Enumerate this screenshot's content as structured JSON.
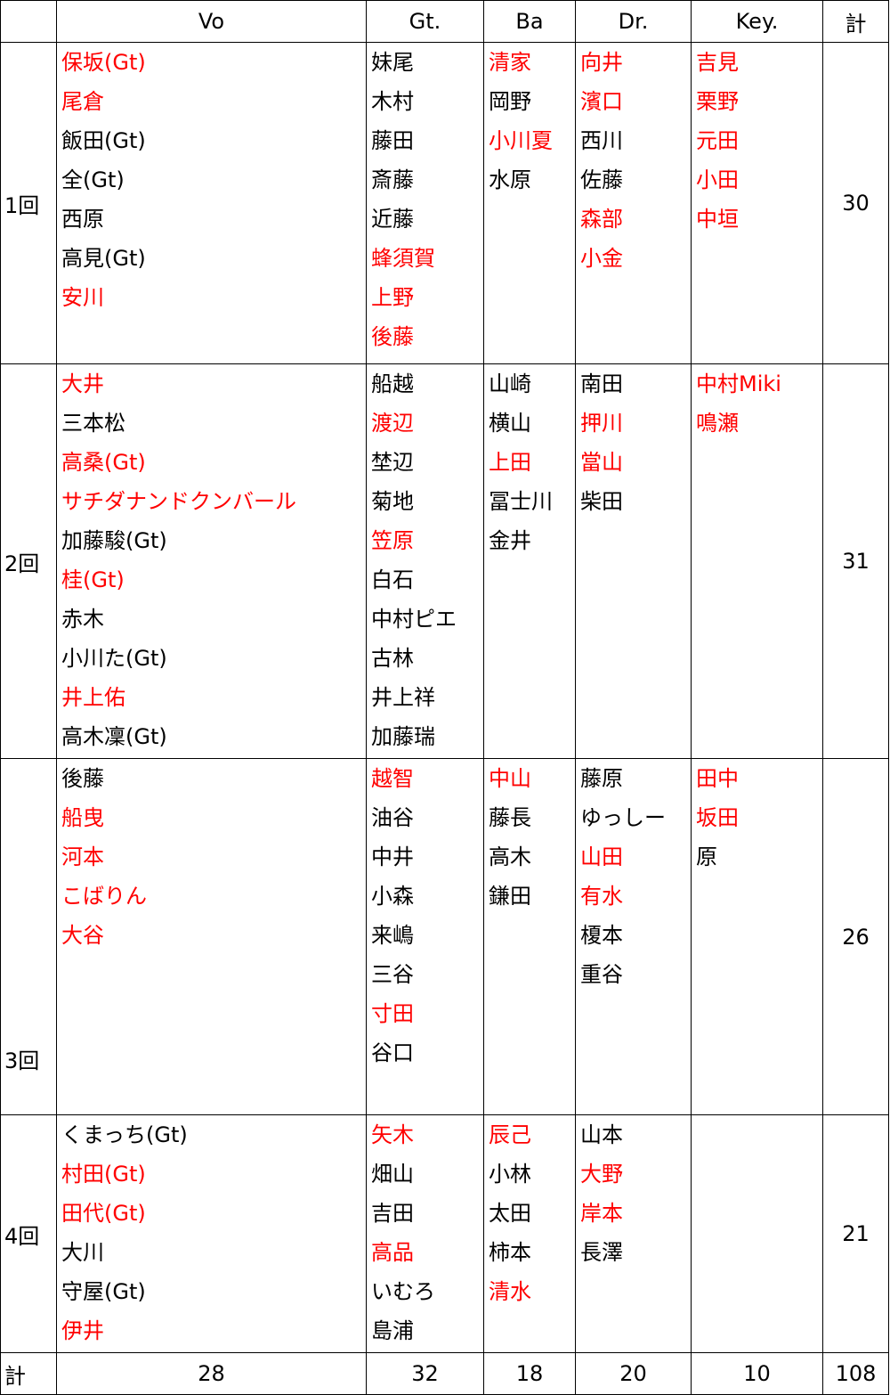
{
  "colors": {
    "highlight": "#ff0000",
    "text": "#000000"
  },
  "header": [
    "",
    "Vo",
    "Gt.",
    "Ba",
    "Dr.",
    "Key.",
    "計"
  ],
  "rows": [
    {
      "label": "1回",
      "total": "30",
      "cells": [
        [
          {
            "t": "保坂(Gt)",
            "red": true
          },
          {
            "t": "尾倉",
            "red": true
          },
          {
            "t": "飯田(Gt)"
          },
          {
            "t": "全(Gt)"
          },
          {
            "t": "西原"
          },
          {
            "t": "高見(Gt)"
          },
          {
            "t": "安川",
            "red": true
          }
        ],
        [
          {
            "t": "妹尾"
          },
          {
            "t": "木村"
          },
          {
            "t": "藤田"
          },
          {
            "t": "斎藤"
          },
          {
            "t": "近藤"
          },
          {
            "t": "蜂須賀",
            "red": true
          },
          {
            "t": "上野",
            "red": true
          },
          {
            "t": "後藤",
            "red": true
          }
        ],
        [
          {
            "t": "清家",
            "red": true
          },
          {
            "t": "岡野"
          },
          {
            "t": "小川夏",
            "red": true
          },
          {
            "t": "水原"
          }
        ],
        [
          {
            "t": "向井",
            "red": true
          },
          {
            "t": "濱口",
            "red": true
          },
          {
            "t": "西川"
          },
          {
            "t": "佐藤"
          },
          {
            "t": "森部",
            "red": true
          },
          {
            "t": "小金",
            "red": true
          }
        ],
        [
          {
            "t": "吉見",
            "red": true
          },
          {
            "t": "栗野",
            "red": true
          },
          {
            "t": "元田",
            "red": true
          },
          {
            "t": "小田",
            "red": true
          },
          {
            "t": "中垣",
            "red": true
          }
        ]
      ]
    },
    {
      "label": "2回",
      "total": "31",
      "cells": [
        [
          {
            "t": "大井",
            "red": true
          },
          {
            "t": "三本松"
          },
          {
            "t": "高桑(Gt)",
            "red": true
          },
          {
            "t": "サチダナンドクンバール",
            "red": true
          },
          {
            "t": "加藤駿(Gt)"
          },
          {
            "t": "桂(Gt)",
            "red": true
          },
          {
            "t": "赤木"
          },
          {
            "t": "小川た(Gt)"
          },
          {
            "t": "井上佑",
            "red": true
          },
          {
            "t": "高木凜(Gt)"
          }
        ],
        [
          {
            "t": "船越"
          },
          {
            "t": "渡辺",
            "red": true
          },
          {
            "t": "埜辺"
          },
          {
            "t": "菊地"
          },
          {
            "t": "笠原",
            "red": true
          },
          {
            "t": "白石"
          },
          {
            "t": "中村ピエ"
          },
          {
            "t": "古林"
          },
          {
            "t": "井上祥"
          },
          {
            "t": "加藤瑞"
          }
        ],
        [
          {
            "t": "山崎"
          },
          {
            "t": "横山"
          },
          {
            "t": "上田",
            "red": true
          },
          {
            "t": "冨士川"
          },
          {
            "t": "金井"
          }
        ],
        [
          {
            "t": "南田"
          },
          {
            "t": "押川",
            "red": true
          },
          {
            "t": "當山",
            "red": true
          },
          {
            "t": "柴田"
          }
        ],
        [
          {
            "t": "中村Miki",
            "red": true
          },
          {
            "t": "鳴瀬",
            "red": true
          }
        ]
      ]
    },
    {
      "label": "3回",
      "total": "26",
      "cells": [
        [
          {
            "t": "後藤"
          },
          {
            "t": "船曳",
            "red": true
          },
          {
            "t": "河本",
            "red": true
          },
          {
            "t": "こばりん",
            "red": true
          },
          {
            "t": "大谷",
            "red": true
          }
        ],
        [
          {
            "t": "越智",
            "red": true
          },
          {
            "t": "油谷"
          },
          {
            "t": "中井"
          },
          {
            "t": "小森"
          },
          {
            "t": "来嶋"
          },
          {
            "t": "三谷"
          },
          {
            "t": "寸田",
            "red": true
          },
          {
            "t": "谷口"
          }
        ],
        [
          {
            "t": "中山",
            "red": true
          },
          {
            "t": "藤長"
          },
          {
            "t": "高木"
          },
          {
            "t": "鎌田"
          }
        ],
        [
          {
            "t": "藤原"
          },
          {
            "t": "ゆっしー"
          },
          {
            "t": "山田",
            "red": true
          },
          {
            "t": "有水",
            "red": true
          },
          {
            "t": "榎本"
          },
          {
            "t": "重谷"
          }
        ],
        [
          {
            "t": "田中",
            "red": true
          },
          {
            "t": "坂田",
            "red": true
          },
          {
            "t": "原"
          }
        ]
      ]
    },
    {
      "label": "4回",
      "total": "21",
      "cells": [
        [
          {
            "t": "くまっち(Gt)"
          },
          {
            "t": "村田(Gt)",
            "red": true
          },
          {
            "t": "田代(Gt)",
            "red": true
          },
          {
            "t": "大川"
          },
          {
            "t": "守屋(Gt)"
          },
          {
            "t": "伊井",
            "red": true
          }
        ],
        [
          {
            "t": "矢木",
            "red": true
          },
          {
            "t": "畑山"
          },
          {
            "t": "吉田"
          },
          {
            "t": "高品",
            "red": true
          },
          {
            "t": "いむろ"
          },
          {
            "t": "島浦"
          }
        ],
        [
          {
            "t": "辰己",
            "red": true
          },
          {
            "t": "小林"
          },
          {
            "t": "太田"
          },
          {
            "t": "柿本"
          },
          {
            "t": "清水",
            "red": true
          }
        ],
        [
          {
            "t": "山本"
          },
          {
            "t": "大野",
            "red": true
          },
          {
            "t": "岸本",
            "red": true
          },
          {
            "t": "長澤"
          }
        ],
        []
      ]
    }
  ],
  "totals": [
    "計",
    "28",
    "32",
    "18",
    "20",
    "10",
    "108"
  ]
}
